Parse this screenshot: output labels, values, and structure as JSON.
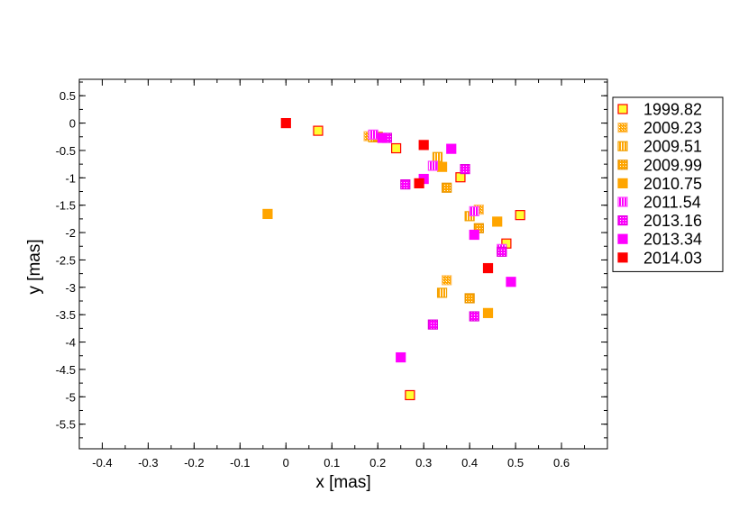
{
  "chart_data": {
    "type": "scatter",
    "xlabel": "x [mas]",
    "ylabel": "y [mas]",
    "xlim": [
      -0.45,
      0.7
    ],
    "ylim": [
      -5.95,
      0.8
    ],
    "xticks": [
      -0.4,
      -0.3,
      -0.2,
      -0.1,
      0,
      0.1,
      0.2,
      0.3,
      0.4,
      0.5,
      0.6
    ],
    "yticks": [
      0.5,
      0,
      -0.5,
      -1,
      -1.5,
      -2,
      -2.5,
      -3,
      -3.5,
      -4,
      -4.5,
      -5,
      -5.5
    ],
    "xtick_labels": [
      "-0.4",
      "-0.3",
      "-0.2",
      "-0.1",
      "0",
      "0.1",
      "0.2",
      "0.3",
      "0.4",
      "0.5",
      "0.6"
    ],
    "ytick_labels": [
      "0.5",
      "0",
      "-0.5",
      "-1",
      "-1.5",
      "-2",
      "-2.5",
      "-3",
      "-3.5",
      "-4",
      "-4.5",
      "-5",
      "-5.5"
    ],
    "grid": false,
    "legend_position": "right",
    "series": [
      {
        "name": "1999.82",
        "fill": "#ffff33",
        "stroke": "#ff0000",
        "pattern": "solid",
        "points": [
          [
            0.07,
            -0.14
          ],
          [
            0.24,
            -0.46
          ],
          [
            0.38,
            -0.99
          ],
          [
            0.51,
            -1.68
          ],
          [
            0.48,
            -2.2
          ],
          [
            0.27,
            -4.97
          ]
        ]
      },
      {
        "name": "2009.23",
        "fill": "#ffa500",
        "stroke": "#ffc060",
        "pattern": "fine-diag",
        "points": [
          [
            0.18,
            -0.24
          ],
          [
            0.42,
            -1.58
          ],
          [
            0.35,
            -2.87
          ]
        ]
      },
      {
        "name": "2009.51",
        "fill": "#ffa500",
        "stroke": "#f0a000",
        "pattern": "vstripe",
        "points": [
          [
            0.19,
            -0.26
          ],
          [
            0.33,
            -0.62
          ],
          [
            0.4,
            -1.7
          ],
          [
            0.34,
            -3.1
          ]
        ]
      },
      {
        "name": "2009.99",
        "fill": "#ffa500",
        "stroke": "#e89400",
        "pattern": "crosshatch",
        "points": [
          [
            0.2,
            -0.25
          ],
          [
            0.35,
            -1.18
          ],
          [
            0.42,
            -1.92
          ],
          [
            0.4,
            -3.2
          ]
        ]
      },
      {
        "name": "2010.75",
        "fill": "#ffa500",
        "stroke": "#ffa500",
        "pattern": "solid",
        "points": [
          [
            -0.04,
            -1.66
          ],
          [
            0.34,
            -0.8
          ],
          [
            0.46,
            -1.8
          ],
          [
            0.44,
            -3.47
          ]
        ]
      },
      {
        "name": "2011.54",
        "fill": "#ff00ff",
        "stroke": "#ff44ff",
        "pattern": "vstripe",
        "points": [
          [
            0.19,
            -0.21
          ],
          [
            0.32,
            -0.78
          ],
          [
            0.41,
            -1.61
          ],
          [
            0.47,
            -2.3
          ]
        ]
      },
      {
        "name": "2013.16",
        "fill": "#ff00ff",
        "stroke": "#e000e0",
        "pattern": "crosshatch",
        "points": [
          [
            0.22,
            -0.27
          ],
          [
            0.26,
            -1.12
          ],
          [
            0.39,
            -0.84
          ],
          [
            0.47,
            -2.35
          ],
          [
            0.32,
            -3.68
          ],
          [
            0.41,
            -3.53
          ]
        ]
      },
      {
        "name": "2013.34",
        "fill": "#ff00ff",
        "stroke": "#ff00ff",
        "pattern": "solid",
        "points": [
          [
            0.21,
            -0.27
          ],
          [
            0.3,
            -1.02
          ],
          [
            0.36,
            -0.47
          ],
          [
            0.41,
            -2.04
          ],
          [
            0.49,
            -2.9
          ],
          [
            0.25,
            -4.28
          ]
        ]
      },
      {
        "name": "2014.03",
        "fill": "#ff0000",
        "stroke": "#ff0000",
        "pattern": "solid",
        "points": [
          [
            0.0,
            0.0
          ],
          [
            0.3,
            -0.4
          ],
          [
            0.29,
            -1.1
          ],
          [
            0.44,
            -2.65
          ]
        ]
      }
    ]
  }
}
